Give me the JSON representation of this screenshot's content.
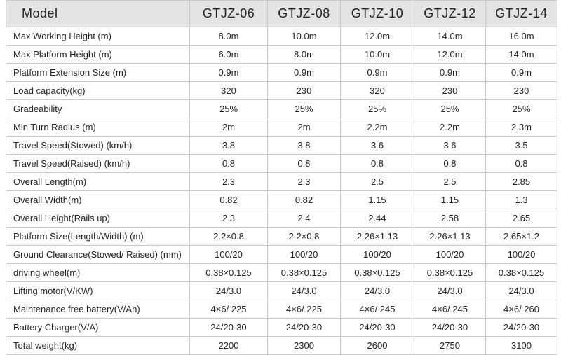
{
  "table": {
    "header": [
      "Model",
      "GTJZ-06",
      "GTJZ-08",
      "GTJZ-10",
      "GTJZ-12",
      "GTJZ-14"
    ],
    "rows": [
      [
        "Max Working Height (m)",
        "8.0m",
        "10.0m",
        "12.0m",
        "14.0m",
        "16.0m"
      ],
      [
        "Max Platform Height (m)",
        "6.0m",
        "8.0m",
        "10.0m",
        "12.0m",
        "14.0m"
      ],
      [
        "Platform Extension Size (m)",
        "0.9m",
        "0.9m",
        "0.9m",
        "0.9m",
        "0.9m"
      ],
      [
        "Load capacity(kg)",
        "320",
        "230",
        "320",
        "230",
        "230"
      ],
      [
        "Gradeability",
        "25%",
        "25%",
        "25%",
        "25%",
        "25%"
      ],
      [
        "Min Turn Radius (m)",
        "2m",
        "2m",
        "2.2m",
        "2.2m",
        "2.3m"
      ],
      [
        "Travel Speed(Stowed) (km/h)",
        "3.8",
        "3.8",
        "3.6",
        "3.6",
        "3.5"
      ],
      [
        "Travel Speed(Raised) (km/h)",
        "0.8",
        "0.8",
        "0.8",
        "0.8",
        "0.8"
      ],
      [
        "Overall Length(m)",
        "2.3",
        "2.3",
        "2.5",
        "2.5",
        "2.85"
      ],
      [
        "Overall Width(m)",
        "0.82",
        "0.82",
        "1.15",
        "1.15",
        "1.3"
      ],
      [
        "Overall Height(Rails up)",
        "2.3",
        "2.4",
        "2.44",
        "2.58",
        "2.65"
      ],
      [
        "Platform Size(Length/Width) (m)",
        "2.2×0.8",
        "2.2×0.8",
        "2.26×1.13",
        "2.26×1.13",
        "2.65×1.2"
      ],
      [
        "Ground Clearance(Stowed/ Raised) (mm)",
        "100/20",
        "100/20",
        "100/20",
        "100/20",
        "100/20"
      ],
      [
        "driving wheel(m)",
        "0.38×0.125",
        "0.38×0.125",
        "0.38×0.125",
        "0.38×0.125",
        "0.38×0.125"
      ],
      [
        "Lifting motor(V/KW)",
        "24/3.0",
        "24/3.0",
        "24/3.0",
        "24/3.0",
        "24/3.0"
      ],
      [
        "Maintenance free battery(V/Ah)",
        "4×6/ 225",
        "4×6/ 225",
        "4×6/ 245",
        "4×6/ 245",
        "4×6/ 260"
      ],
      [
        "Battery Charger(V/A)",
        "24/20-30",
        "24/20-30",
        "24/20-30",
        "24/20-30",
        "24/20-30"
      ],
      [
        "Total weight(kg)",
        "2200",
        "2300",
        "2600",
        "2750",
        "3100"
      ]
    ]
  }
}
